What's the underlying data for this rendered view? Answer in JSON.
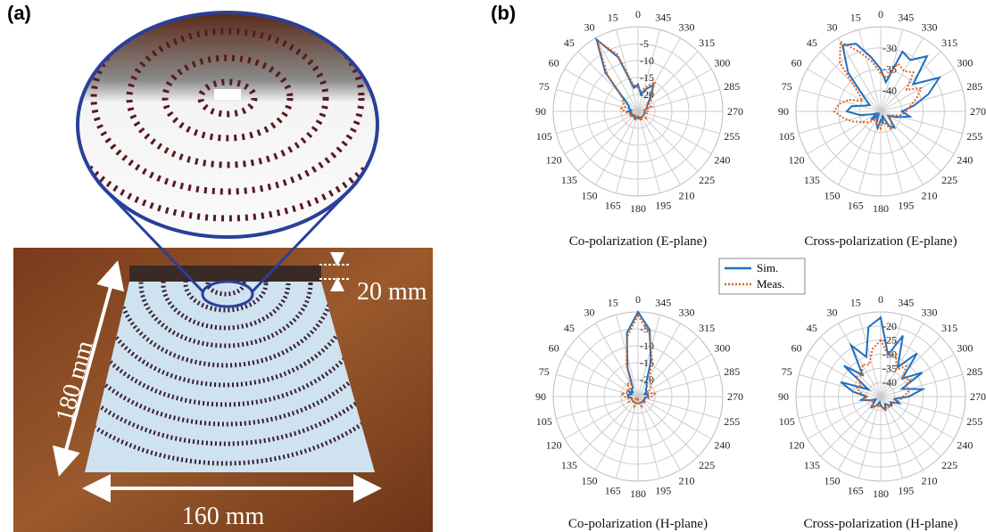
{
  "figure": {
    "panel_labels": [
      "(a)",
      "(b)"
    ],
    "dimensions": [
      "180 mm",
      "160 mm",
      "20 mm"
    ]
  },
  "legend": [
    "Sim.",
    "Meas."
  ],
  "chart_data": [
    {
      "type": "polar",
      "caption": "Co-polarization (E-plane)",
      "rlim": [
        -25,
        0
      ],
      "rticks": [
        -20,
        -15,
        -10,
        -5
      ],
      "thetaticks": [
        0,
        15,
        30,
        45,
        60,
        75,
        90,
        105,
        120,
        135,
        150,
        165,
        180,
        195,
        210,
        225,
        240,
        255,
        270,
        285,
        300,
        315,
        330,
        345
      ],
      "theta": [
        0,
        10,
        20,
        30,
        40,
        50,
        60,
        70,
        80,
        90,
        100,
        110,
        120,
        130,
        140,
        150,
        160,
        170,
        180,
        190,
        200,
        210,
        220,
        230,
        240,
        250,
        260,
        270,
        280,
        290,
        300,
        310,
        320,
        330,
        340,
        350
      ],
      "series": [
        {
          "name": "Sim.",
          "color": "#1f6fc0",
          "values": [
            -17,
            -18,
            -8,
            -0.5,
            -10,
            -20,
            -22,
            -22,
            -23,
            -22,
            -23,
            -23,
            -23,
            -23,
            -23,
            -23,
            -23,
            -23,
            -23,
            -23,
            -23,
            -23,
            -23,
            -23,
            -23,
            -23,
            -23,
            -23,
            -23,
            -22,
            -22,
            -21,
            -19,
            -16,
            -18,
            -20
          ]
        },
        {
          "name": "Meas.",
          "color": "#e0601a",
          "values": [
            -18,
            -17,
            -7,
            -1,
            -11,
            -19,
            -20,
            -21,
            -20,
            -21,
            -22,
            -23,
            -22,
            -23,
            -24,
            -23,
            -22,
            -23,
            -24,
            -23,
            -22,
            -23,
            -23,
            -22,
            -23,
            -23,
            -22,
            -22,
            -23,
            -21,
            -22,
            -20,
            -19,
            -15,
            -17,
            -19
          ]
        }
      ]
    },
    {
      "type": "polar",
      "caption": "Cross-polarization (E-plane)",
      "rlim": [
        -45,
        -25
      ],
      "rticks": [
        -40,
        -35,
        -30
      ],
      "thetaticks": [
        0,
        15,
        30,
        45,
        60,
        75,
        90,
        105,
        120,
        135,
        150,
        165,
        180,
        195,
        210,
        225,
        240,
        255,
        270,
        285,
        300,
        315,
        330,
        345
      ],
      "theta": [
        0,
        10,
        20,
        30,
        40,
        50,
        60,
        70,
        80,
        90,
        100,
        110,
        120,
        130,
        140,
        150,
        160,
        170,
        180,
        190,
        200,
        210,
        220,
        230,
        240,
        250,
        260,
        270,
        280,
        290,
        300,
        310,
        320,
        330,
        340,
        350
      ],
      "series": [
        {
          "name": "Sim.",
          "color": "#1f6fc0",
          "values": [
            -35,
            -32,
            -28,
            -27,
            -33,
            -40,
            -42,
            -41,
            -38,
            -37,
            -40,
            -43,
            -44,
            -42,
            -43,
            -44,
            -42,
            -41,
            -43,
            -42,
            -44,
            -41,
            -40,
            -42,
            -43,
            -41,
            -38,
            -40,
            -37,
            -33,
            -29,
            -35,
            -28,
            -31,
            -30,
            -38
          ]
        },
        {
          "name": "Meas.",
          "color": "#e0601a",
          "values": [
            -36,
            -33,
            -30,
            -26,
            -30,
            -38,
            -40,
            -37,
            -35,
            -34,
            -36,
            -38,
            -40,
            -41,
            -42,
            -43,
            -42,
            -42,
            -41,
            -43,
            -42,
            -40,
            -41,
            -42,
            -43,
            -42,
            -40,
            -39,
            -38,
            -36,
            -34,
            -37,
            -33,
            -34,
            -33,
            -37
          ]
        }
      ]
    },
    {
      "type": "polar",
      "caption": "Co-polarization (H-plane)",
      "rlim": [
        -25,
        0
      ],
      "rticks": [
        -20,
        -15,
        -10,
        -5
      ],
      "thetaticks": [
        0,
        15,
        30,
        45,
        60,
        75,
        90,
        105,
        120,
        135,
        150,
        165,
        180,
        195,
        210,
        225,
        240,
        255,
        270,
        285,
        300,
        315,
        330,
        345
      ],
      "theta": [
        0,
        10,
        20,
        30,
        40,
        50,
        60,
        70,
        80,
        90,
        100,
        110,
        120,
        130,
        140,
        150,
        160,
        170,
        180,
        190,
        200,
        210,
        220,
        230,
        240,
        250,
        260,
        270,
        280,
        290,
        300,
        310,
        320,
        330,
        340,
        350
      ],
      "series": [
        {
          "name": "Sim.",
          "color": "#1f6fc0",
          "values": [
            0,
            -6,
            -16,
            -22,
            -22,
            -23,
            -22,
            -23,
            -22,
            -22,
            -23,
            -23,
            -23,
            -23,
            -23,
            -23,
            -23,
            -23,
            -23,
            -23,
            -23,
            -23,
            -23,
            -23,
            -23,
            -23,
            -23,
            -22,
            -22,
            -23,
            -22,
            -22,
            -21,
            -20,
            -14,
            -5
          ]
        },
        {
          "name": "Meas.",
          "color": "#e0601a",
          "values": [
            -1,
            -7,
            -15,
            -21,
            -20,
            -22,
            -21,
            -22,
            -20,
            -21,
            -22,
            -23,
            -22,
            -23,
            -24,
            -23,
            -22,
            -23,
            -24,
            -23,
            -22,
            -23,
            -23,
            -22,
            -23,
            -23,
            -22,
            -21,
            -20,
            -22,
            -21,
            -20,
            -19,
            -18,
            -13,
            -6
          ]
        }
      ]
    },
    {
      "type": "polar",
      "caption": "Cross-polarization (H-plane)",
      "rlim": [
        -45,
        -15
      ],
      "rticks": [
        -40,
        -35,
        -30,
        -25,
        -20
      ],
      "thetaticks": [
        0,
        15,
        30,
        45,
        60,
        75,
        90,
        105,
        120,
        135,
        150,
        165,
        180,
        195,
        210,
        225,
        240,
        255,
        270,
        285,
        300,
        315,
        330,
        345
      ],
      "theta": [
        0,
        10,
        20,
        30,
        40,
        50,
        60,
        70,
        80,
        90,
        100,
        110,
        120,
        130,
        140,
        150,
        160,
        170,
        180,
        190,
        200,
        210,
        220,
        230,
        240,
        250,
        260,
        270,
        280,
        290,
        300,
        310,
        320,
        330,
        340,
        350
      ],
      "series": [
        {
          "name": "Sim.",
          "color": "#1f6fc0",
          "values": [
            -17,
            -20,
            -30,
            -24,
            -35,
            -28,
            -40,
            -30,
            -35,
            -40,
            -38,
            -41,
            -43,
            -42,
            -40,
            -41,
            -42,
            -43,
            -42,
            -41,
            -40,
            -42,
            -41,
            -40,
            -41,
            -38,
            -40,
            -35,
            -30,
            -37,
            -28,
            -35,
            -25,
            -33,
            -22,
            -30
          ]
        },
        {
          "name": "Meas.",
          "color": "#e0601a",
          "values": [
            -25,
            -28,
            -33,
            -32,
            -35,
            -34,
            -37,
            -36,
            -38,
            -40,
            -39,
            -41,
            -42,
            -41,
            -40,
            -41,
            -42,
            -41,
            -42,
            -41,
            -40,
            -41,
            -40,
            -41,
            -40,
            -39,
            -38,
            -37,
            -35,
            -36,
            -33,
            -35,
            -31,
            -34,
            -29,
            -30
          ]
        }
      ]
    }
  ]
}
